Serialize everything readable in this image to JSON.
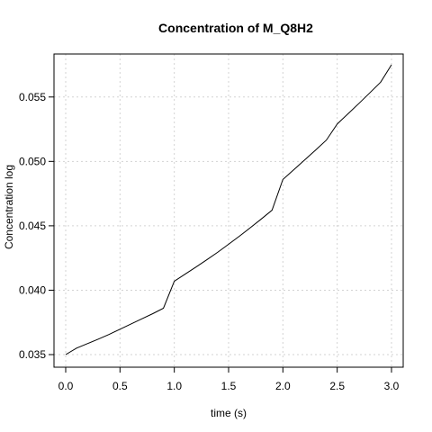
{
  "chart_data": {
    "type": "line",
    "title": "Concentration of M_Q8H2",
    "xlabel": "time (s)",
    "ylabel": "Concentration log",
    "xlim": [
      0,
      3
    ],
    "ylim": [
      0.035,
      0.0575
    ],
    "xticks": [
      0,
      0.5,
      1,
      1.5,
      2,
      2.5,
      3
    ],
    "xtick_labels": [
      "0.0",
      "0.5",
      "1.0",
      "1.5",
      "2.0",
      "2.5",
      "3.0"
    ],
    "yticks": [
      0.035,
      0.04,
      0.045,
      0.05,
      0.055
    ],
    "ytick_labels": [
      "0.035",
      "0.040",
      "0.045",
      "0.050",
      "0.055"
    ],
    "grid": true,
    "colors": {
      "line": "#000000",
      "grid": "#d3d3d3"
    },
    "series": [
      {
        "x": [
          0,
          0.1,
          0.2,
          0.3,
          0.4,
          0.5,
          0.6,
          0.7,
          0.8,
          0.9,
          1.0,
          1.1,
          1.2,
          1.3,
          1.4,
          1.5,
          1.6,
          1.7,
          1.8,
          1.9,
          2.0,
          2.1,
          2.2,
          2.3,
          2.4,
          2.5,
          2.6,
          2.7,
          2.8,
          2.9,
          3.0
        ],
        "values": [
          0.035,
          0.0355,
          0.03585,
          0.0362,
          0.03657,
          0.03697,
          0.03737,
          0.03777,
          0.03817,
          0.0386,
          0.0407,
          0.04125,
          0.0418,
          0.04237,
          0.04295,
          0.04357,
          0.0442,
          0.04485,
          0.04552,
          0.04621,
          0.0486,
          0.04935,
          0.05011,
          0.05087,
          0.05165,
          0.0529,
          0.0537,
          0.0545,
          0.05532,
          0.05615,
          0.0575
        ]
      }
    ]
  }
}
